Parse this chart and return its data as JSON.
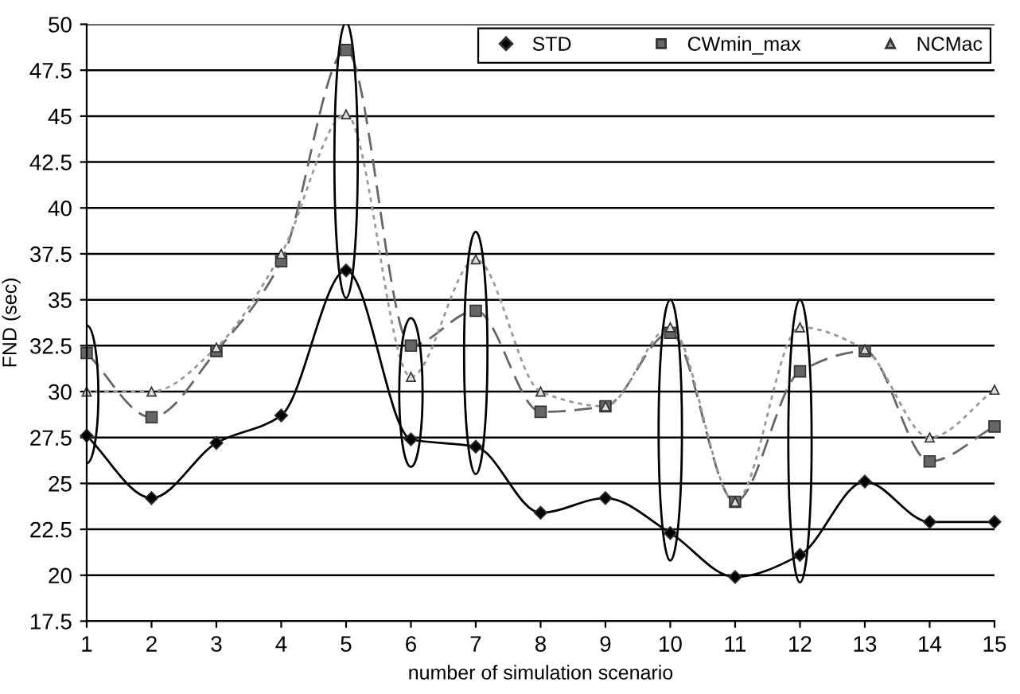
{
  "chart_data": {
    "type": "line",
    "xlabel": "number of simulation scenario",
    "ylabel": "FND (sec)",
    "x": [
      1,
      2,
      3,
      4,
      5,
      6,
      7,
      8,
      9,
      10,
      11,
      12,
      13,
      14,
      15
    ],
    "series": [
      {
        "name": "STD",
        "color": "#000000",
        "marker": "diamond",
        "line_style": "solid",
        "values": [
          27.6,
          24.2,
          27.2,
          28.7,
          36.6,
          27.4,
          27.0,
          23.4,
          24.2,
          22.3,
          19.9,
          21.1,
          25.1,
          22.9,
          22.9
        ]
      },
      {
        "name": "CWmin_max",
        "color": "#666666",
        "marker": "square",
        "line_style": "dashed",
        "values": [
          32.1,
          28.6,
          32.2,
          37.1,
          48.6,
          32.5,
          34.4,
          28.9,
          29.2,
          33.2,
          24.0,
          31.1,
          32.2,
          26.2,
          28.1
        ]
      },
      {
        "name": "NCMac",
        "color": "#999999",
        "marker": "triangle",
        "line_style": "dotted",
        "values": [
          30.0,
          30.0,
          32.4,
          37.5,
          45.1,
          30.8,
          37.2,
          30.0,
          29.2,
          33.5,
          24.0,
          33.5,
          32.3,
          27.5,
          30.1
        ]
      }
    ],
    "xlim": [
      1,
      15
    ],
    "xticks": [
      1,
      2,
      3,
      4,
      5,
      6,
      7,
      8,
      9,
      10,
      11,
      12,
      13,
      14,
      15
    ],
    "ylim": [
      17.5,
      50
    ],
    "yticks": [
      17.5,
      20,
      22.5,
      25,
      27.5,
      30,
      32.5,
      35,
      37.5,
      40,
      42.5,
      45,
      47.5,
      50
    ],
    "grid": "y",
    "legend": "top right"
  }
}
